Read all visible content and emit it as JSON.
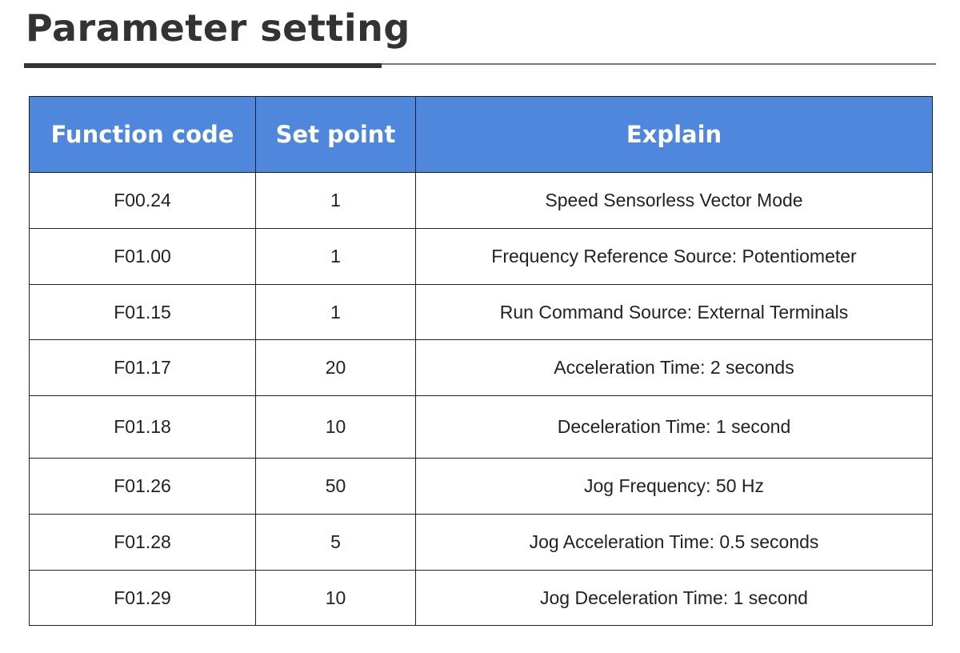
{
  "header": {
    "title": "Parameter setting"
  },
  "table": {
    "columns": [
      "Function code",
      "Set point",
      "Explain"
    ],
    "rows": [
      [
        "F00.24",
        "1",
        "Speed Sensorless Vector Mode"
      ],
      [
        "F01.00",
        "1",
        "Frequency Reference Source: Potentiometer"
      ],
      [
        "F01.15",
        "1",
        "Run Command Source: External Terminals"
      ],
      [
        "F01.17",
        "20",
        "Acceleration Time: 2 seconds"
      ],
      [
        "F01.18",
        "10",
        "Deceleration Time: 1 second"
      ],
      [
        "F01.26",
        "50",
        "Jog Frequency: 50 Hz"
      ],
      [
        "F01.28",
        "5",
        "Jog Acceleration Time: 0.5 seconds"
      ],
      [
        "F01.29",
        "10",
        "Jog Deceleration Time: 1 second"
      ]
    ]
  }
}
